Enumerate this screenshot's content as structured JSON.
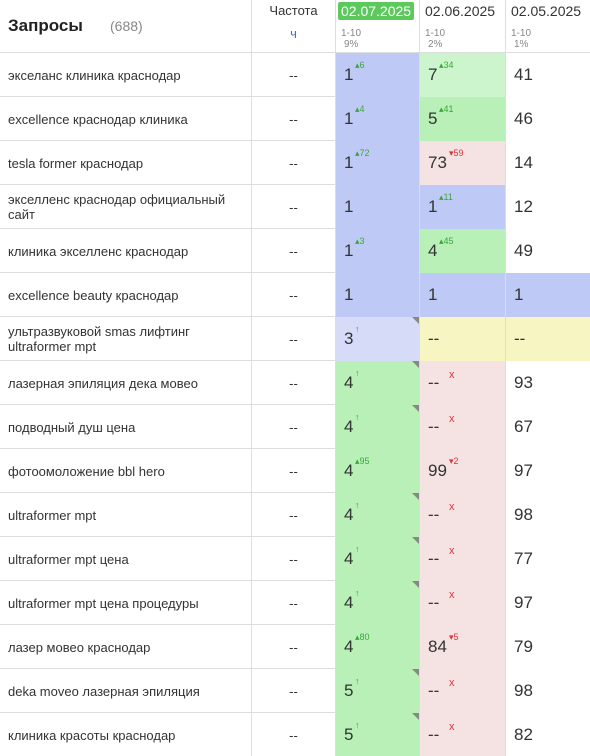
{
  "header": {
    "title": "Запросы",
    "count": "(688)",
    "freq_label": "Частота",
    "freq_sub": "ч",
    "columns": [
      {
        "date": "02.07.2025",
        "range": "1-10",
        "pct": "9%"
      },
      {
        "date": "02.06.2025",
        "range": "1-10",
        "pct": "2%"
      },
      {
        "date": "02.05.2025",
        "range": "1-10",
        "pct": "1%"
      }
    ]
  },
  "rows": [
    {
      "query": "экселанс клиника краснодар",
      "freq": "--",
      "cells": [
        {
          "v": "1",
          "d": "6",
          "dir": "up",
          "bg": "blue"
        },
        {
          "v": "7",
          "d": "34",
          "dir": "up",
          "bg": "lgreen"
        },
        {
          "v": "41",
          "d": "",
          "dir": "",
          "bg": "none"
        }
      ]
    },
    {
      "query": "excellence краснодар клиника",
      "freq": "--",
      "cells": [
        {
          "v": "1",
          "d": "4",
          "dir": "up",
          "bg": "blue"
        },
        {
          "v": "5",
          "d": "41",
          "dir": "up",
          "bg": "green"
        },
        {
          "v": "46",
          "d": "",
          "dir": "",
          "bg": "none"
        }
      ]
    },
    {
      "query": "tesla former краснодар",
      "freq": "--",
      "cells": [
        {
          "v": "1",
          "d": "72",
          "dir": "up",
          "bg": "blue"
        },
        {
          "v": "73",
          "d": "59",
          "dir": "down",
          "bg": "pink"
        },
        {
          "v": "14",
          "d": "",
          "dir": "",
          "bg": "none"
        }
      ]
    },
    {
      "query": "экселленс краснодар официальный сайт",
      "freq": "--",
      "cells": [
        {
          "v": "1",
          "d": "",
          "dir": "",
          "bg": "blue"
        },
        {
          "v": "1",
          "d": "11",
          "dir": "up",
          "bg": "blue"
        },
        {
          "v": "12",
          "d": "",
          "dir": "",
          "bg": "none"
        }
      ]
    },
    {
      "query": "клиника экселленс краснодар",
      "freq": "--",
      "cells": [
        {
          "v": "1",
          "d": "3",
          "dir": "up",
          "bg": "blue"
        },
        {
          "v": "4",
          "d": "45",
          "dir": "up",
          "bg": "green"
        },
        {
          "v": "49",
          "d": "",
          "dir": "",
          "bg": "none"
        }
      ]
    },
    {
      "query": "excellence beauty краснодар",
      "freq": "--",
      "cells": [
        {
          "v": "1",
          "d": "",
          "dir": "",
          "bg": "blue"
        },
        {
          "v": "1",
          "d": "",
          "dir": "",
          "bg": "blue"
        },
        {
          "v": "1",
          "d": "",
          "dir": "",
          "bg": "blue"
        }
      ]
    },
    {
      "query": "ультразвуковой smas лифтинг ultraformer mpt",
      "freq": "--",
      "cells": [
        {
          "v": "3",
          "d": "↑",
          "dir": "new",
          "bg": "lblue",
          "corner": true
        },
        {
          "v": "--",
          "d": "",
          "dir": "",
          "bg": "yellow"
        },
        {
          "v": "--",
          "d": "",
          "dir": "",
          "bg": "yellow"
        }
      ]
    },
    {
      "query": "лазерная эпиляция дека мовео",
      "freq": "--",
      "cells": [
        {
          "v": "4",
          "d": "↑",
          "dir": "new",
          "bg": "green",
          "corner": true
        },
        {
          "v": "--",
          "d": "x",
          "dir": "x",
          "bg": "pink"
        },
        {
          "v": "93",
          "d": "",
          "dir": "",
          "bg": "none"
        }
      ]
    },
    {
      "query": "подводный душ цена",
      "freq": "--",
      "cells": [
        {
          "v": "4",
          "d": "↑",
          "dir": "new",
          "bg": "green",
          "corner": true
        },
        {
          "v": "--",
          "d": "x",
          "dir": "x",
          "bg": "pink"
        },
        {
          "v": "67",
          "d": "",
          "dir": "",
          "bg": "none"
        }
      ]
    },
    {
      "query": "фотоомоложение bbl hero",
      "freq": "--",
      "cells": [
        {
          "v": "4",
          "d": "95",
          "dir": "up",
          "bg": "green"
        },
        {
          "v": "99",
          "d": "2",
          "dir": "down",
          "bg": "pink"
        },
        {
          "v": "97",
          "d": "",
          "dir": "",
          "bg": "none"
        }
      ]
    },
    {
      "query": "ultraformer mpt",
      "freq": "--",
      "cells": [
        {
          "v": "4",
          "d": "↑",
          "dir": "new",
          "bg": "green",
          "corner": true
        },
        {
          "v": "--",
          "d": "x",
          "dir": "x",
          "bg": "pink"
        },
        {
          "v": "98",
          "d": "",
          "dir": "",
          "bg": "none"
        }
      ]
    },
    {
      "query": "ultraformer mpt цена",
      "freq": "--",
      "cells": [
        {
          "v": "4",
          "d": "↑",
          "dir": "new",
          "bg": "green",
          "corner": true
        },
        {
          "v": "--",
          "d": "x",
          "dir": "x",
          "bg": "pink"
        },
        {
          "v": "77",
          "d": "",
          "dir": "",
          "bg": "none"
        }
      ]
    },
    {
      "query": "ultraformer mpt цена процедуры",
      "freq": "--",
      "cells": [
        {
          "v": "4",
          "d": "↑",
          "dir": "new",
          "bg": "green",
          "corner": true
        },
        {
          "v": "--",
          "d": "x",
          "dir": "x",
          "bg": "pink"
        },
        {
          "v": "97",
          "d": "",
          "dir": "",
          "bg": "none"
        }
      ]
    },
    {
      "query": "лазер мовео краснодар",
      "freq": "--",
      "cells": [
        {
          "v": "4",
          "d": "80",
          "dir": "up",
          "bg": "green"
        },
        {
          "v": "84",
          "d": "5",
          "dir": "down",
          "bg": "pink"
        },
        {
          "v": "79",
          "d": "",
          "dir": "",
          "bg": "none"
        }
      ]
    },
    {
      "query": "deka moveo лазерная эпиляция",
      "freq": "--",
      "cells": [
        {
          "v": "5",
          "d": "↑",
          "dir": "new",
          "bg": "green",
          "corner": true
        },
        {
          "v": "--",
          "d": "x",
          "dir": "x",
          "bg": "pink"
        },
        {
          "v": "98",
          "d": "",
          "dir": "",
          "bg": "none"
        }
      ]
    },
    {
      "query": "клиника красоты краснодар",
      "freq": "--",
      "cells": [
        {
          "v": "5",
          "d": "↑",
          "dir": "new",
          "bg": "green",
          "corner": true
        },
        {
          "v": "--",
          "d": "x",
          "dir": "x",
          "bg": "pink"
        },
        {
          "v": "82",
          "d": "",
          "dir": "",
          "bg": "none"
        }
      ]
    }
  ]
}
